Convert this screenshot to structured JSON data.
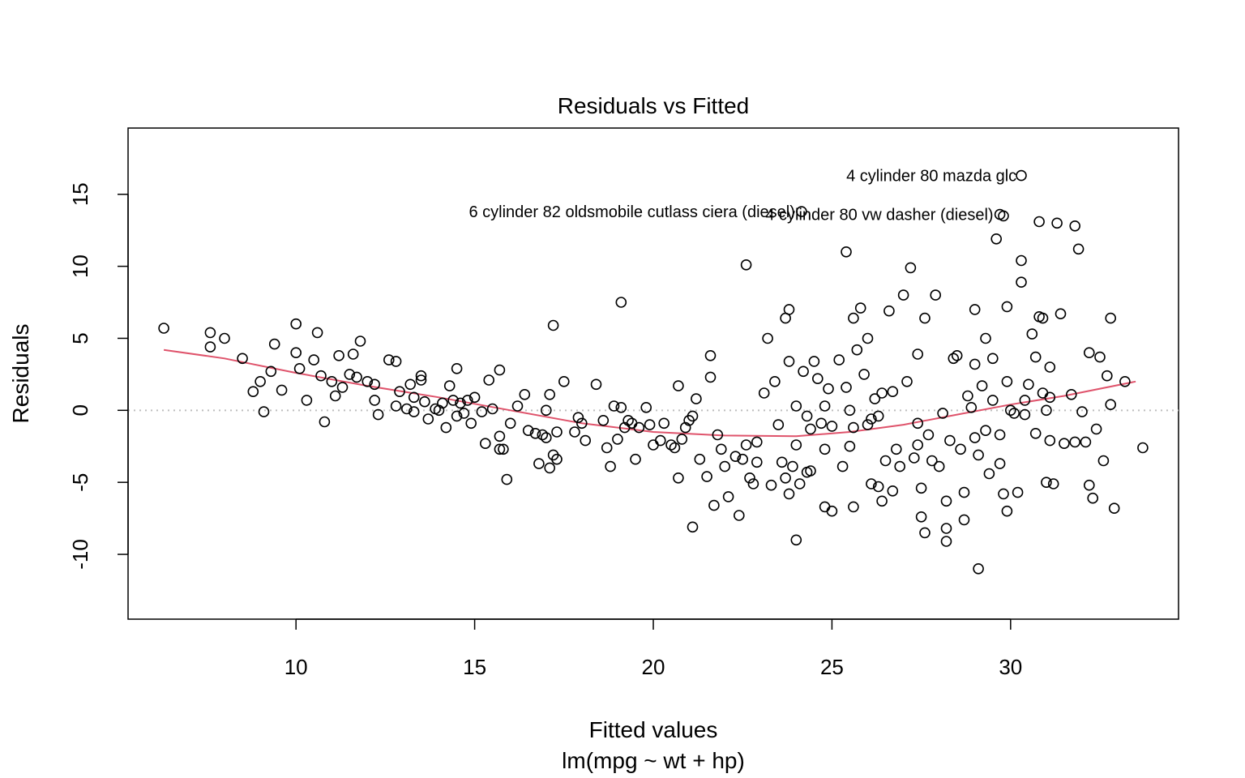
{
  "chart_data": {
    "type": "scatter",
    "title": "Residuals vs Fitted",
    "xlabel": "Fitted values",
    "subtitle": "lm(mpg ~ wt + hp)",
    "ylabel": "Residuals",
    "xlim": [
      5.3,
      34.7
    ],
    "ylim": [
      -14.5,
      19.6
    ],
    "x_ticks": [
      10,
      15,
      20,
      25,
      30
    ],
    "y_ticks": [
      -10,
      -5,
      0,
      5,
      10,
      15
    ],
    "x_tick_labels": [
      "10",
      "15",
      "20",
      "25",
      "30"
    ],
    "y_tick_labels": [
      "-10",
      "-5",
      "0",
      "5",
      "10",
      "15"
    ],
    "reference_line": {
      "y": 0,
      "style": "dotted",
      "color": "#bebebe"
    },
    "smooth_color": "#DF536B",
    "grid": false,
    "smooth": [
      [
        6.3,
        4.2
      ],
      [
        8,
        3.6
      ],
      [
        10,
        2.6
      ],
      [
        12,
        1.7
      ],
      [
        14,
        0.9
      ],
      [
        16,
        0.0
      ],
      [
        18,
        -0.9
      ],
      [
        20,
        -1.5
      ],
      [
        22,
        -1.75
      ],
      [
        24,
        -1.8
      ],
      [
        25.5,
        -1.5
      ],
      [
        27,
        -1.0
      ],
      [
        28.5,
        -0.3
      ],
      [
        30,
        0.4
      ],
      [
        31.5,
        1.0
      ],
      [
        33.5,
        2.0
      ]
    ],
    "labels": [
      {
        "text": "4 cylinder 80 mazda glc",
        "x": 30.35,
        "y": 16.3,
        "anchor": "end"
      },
      {
        "text": "6 cylinder 82 oldsmobile cutlass ciera (diesel)",
        "x": 24.15,
        "y": 13.8,
        "anchor": "end"
      },
      {
        "text": "4 cylinder 80 vw dasher (diesel)",
        "x": 29.7,
        "y": 13.6,
        "anchor": "end"
      }
    ],
    "points": [
      [
        6.3,
        5.7
      ],
      [
        7.6,
        5.4
      ],
      [
        7.6,
        4.4
      ],
      [
        8.0,
        5.0
      ],
      [
        8.5,
        3.6
      ],
      [
        8.8,
        1.3
      ],
      [
        9.0,
        2.0
      ],
      [
        9.1,
        -0.1
      ],
      [
        9.3,
        2.7
      ],
      [
        9.4,
        4.6
      ],
      [
        9.6,
        1.4
      ],
      [
        10.0,
        6.0
      ],
      [
        10.0,
        4.0
      ],
      [
        10.1,
        2.9
      ],
      [
        10.3,
        0.7
      ],
      [
        10.5,
        3.5
      ],
      [
        10.6,
        5.4
      ],
      [
        10.7,
        2.4
      ],
      [
        10.8,
        -0.8
      ],
      [
        11.0,
        2.0
      ],
      [
        11.1,
        1.0
      ],
      [
        11.2,
        3.8
      ],
      [
        11.3,
        1.6
      ],
      [
        11.5,
        2.5
      ],
      [
        11.6,
        3.9
      ],
      [
        11.7,
        2.3
      ],
      [
        11.8,
        4.8
      ],
      [
        12.0,
        2.0
      ],
      [
        12.2,
        1.8
      ],
      [
        12.2,
        0.7
      ],
      [
        12.3,
        -0.3
      ],
      [
        12.6,
        3.5
      ],
      [
        12.8,
        3.4
      ],
      [
        12.8,
        0.3
      ],
      [
        12.9,
        1.3
      ],
      [
        13.1,
        0.1
      ],
      [
        13.2,
        1.8
      ],
      [
        13.3,
        0.9
      ],
      [
        13.3,
        -0.1
      ],
      [
        13.5,
        2.4
      ],
      [
        13.5,
        2.1
      ],
      [
        13.6,
        0.6
      ],
      [
        13.7,
        -0.6
      ],
      [
        13.9,
        0.1
      ],
      [
        14.0,
        0.0
      ],
      [
        14.1,
        0.5
      ],
      [
        14.2,
        -1.2
      ],
      [
        14.3,
        1.7
      ],
      [
        14.4,
        0.7
      ],
      [
        14.5,
        2.9
      ],
      [
        14.5,
        -0.4
      ],
      [
        14.6,
        0.5
      ],
      [
        14.7,
        -0.2
      ],
      [
        14.8,
        0.7
      ],
      [
        14.9,
        -0.9
      ],
      [
        15.0,
        0.9
      ],
      [
        15.2,
        -0.1
      ],
      [
        15.3,
        -2.3
      ],
      [
        15.4,
        2.1
      ],
      [
        15.5,
        0.1
      ],
      [
        15.7,
        2.8
      ],
      [
        15.7,
        -2.7
      ],
      [
        15.7,
        -1.8
      ],
      [
        15.8,
        -2.7
      ],
      [
        15.9,
        -4.8
      ],
      [
        16.0,
        -0.9
      ],
      [
        16.2,
        0.3
      ],
      [
        16.4,
        1.1
      ],
      [
        16.5,
        -1.4
      ],
      [
        16.7,
        -1.6
      ],
      [
        16.8,
        -3.7
      ],
      [
        16.9,
        -1.7
      ],
      [
        17.0,
        0.0
      ],
      [
        17.0,
        -1.9
      ],
      [
        17.1,
        1.1
      ],
      [
        17.1,
        -4.0
      ],
      [
        17.2,
        5.9
      ],
      [
        17.2,
        -3.1
      ],
      [
        17.3,
        -1.5
      ],
      [
        17.3,
        -3.4
      ],
      [
        17.5,
        2.0
      ],
      [
        17.8,
        -1.5
      ],
      [
        17.9,
        -0.5
      ],
      [
        18.0,
        -0.9
      ],
      [
        18.1,
        -2.1
      ],
      [
        18.4,
        1.8
      ],
      [
        18.6,
        -0.7
      ],
      [
        18.7,
        -2.6
      ],
      [
        18.8,
        -3.9
      ],
      [
        18.9,
        0.3
      ],
      [
        19.0,
        -2.0
      ],
      [
        19.1,
        7.5
      ],
      [
        19.1,
        0.2
      ],
      [
        19.2,
        -1.2
      ],
      [
        19.3,
        -0.7
      ],
      [
        19.4,
        -0.9
      ],
      [
        19.5,
        -3.4
      ],
      [
        19.6,
        -1.2
      ],
      [
        19.8,
        0.2
      ],
      [
        19.9,
        -1.0
      ],
      [
        20.0,
        -2.4
      ],
      [
        20.2,
        -2.1
      ],
      [
        20.3,
        -0.9
      ],
      [
        20.5,
        -2.4
      ],
      [
        20.6,
        -2.6
      ],
      [
        20.7,
        1.7
      ],
      [
        20.7,
        -4.7
      ],
      [
        20.8,
        -2.0
      ],
      [
        20.9,
        -1.2
      ],
      [
        21.0,
        -0.7
      ],
      [
        21.1,
        -0.4
      ],
      [
        21.1,
        -8.1
      ],
      [
        21.2,
        0.8
      ],
      [
        21.3,
        -3.4
      ],
      [
        21.5,
        -4.6
      ],
      [
        21.6,
        3.8
      ],
      [
        21.6,
        2.3
      ],
      [
        21.7,
        -6.6
      ],
      [
        21.8,
        -1.7
      ],
      [
        21.9,
        -2.7
      ],
      [
        22.0,
        -3.9
      ],
      [
        22.1,
        -6.0
      ],
      [
        22.3,
        -3.2
      ],
      [
        22.4,
        -7.3
      ],
      [
        22.5,
        -3.4
      ],
      [
        22.6,
        10.1
      ],
      [
        22.6,
        -2.4
      ],
      [
        22.7,
        -4.7
      ],
      [
        22.8,
        -5.1
      ],
      [
        22.9,
        -3.6
      ],
      [
        22.9,
        -2.2
      ],
      [
        23.1,
        1.2
      ],
      [
        23.2,
        5.0
      ],
      [
        23.3,
        -5.2
      ],
      [
        23.4,
        2.0
      ],
      [
        23.5,
        -1.0
      ],
      [
        23.6,
        -3.6
      ],
      [
        23.7,
        6.4
      ],
      [
        23.7,
        -4.7
      ],
      [
        23.8,
        7.0
      ],
      [
        23.8,
        3.4
      ],
      [
        23.8,
        -5.8
      ],
      [
        23.9,
        -3.9
      ],
      [
        24.0,
        -9.0
      ],
      [
        24.0,
        0.3
      ],
      [
        24.0,
        -2.4
      ],
      [
        24.1,
        -5.1
      ],
      [
        24.2,
        2.7
      ],
      [
        24.3,
        -4.3
      ],
      [
        24.3,
        -0.4
      ],
      [
        24.4,
        -1.3
      ],
      [
        24.4,
        -4.2
      ],
      [
        24.5,
        3.4
      ],
      [
        24.6,
        2.2
      ],
      [
        24.7,
        -0.9
      ],
      [
        24.8,
        0.3
      ],
      [
        24.8,
        -2.7
      ],
      [
        24.8,
        -6.7
      ],
      [
        24.9,
        1.5
      ],
      [
        25.0,
        -7.0
      ],
      [
        25.0,
        -1.1
      ],
      [
        25.2,
        3.5
      ],
      [
        25.3,
        -3.9
      ],
      [
        25.4,
        11.0
      ],
      [
        25.4,
        1.6
      ],
      [
        25.5,
        -2.5
      ],
      [
        25.5,
        0.0
      ],
      [
        25.6,
        -1.2
      ],
      [
        25.6,
        6.4
      ],
      [
        25.6,
        -6.7
      ],
      [
        25.7,
        4.2
      ],
      [
        25.8,
        7.1
      ],
      [
        25.9,
        2.5
      ],
      [
        26.0,
        -1.0
      ],
      [
        26.0,
        5.0
      ],
      [
        26.1,
        -5.1
      ],
      [
        26.1,
        -0.6
      ],
      [
        26.2,
        0.8
      ],
      [
        26.3,
        -5.3
      ],
      [
        26.3,
        -0.4
      ],
      [
        26.4,
        1.2
      ],
      [
        26.4,
        -6.3
      ],
      [
        26.5,
        -3.5
      ],
      [
        26.6,
        6.9
      ],
      [
        26.7,
        1.3
      ],
      [
        26.7,
        -5.6
      ],
      [
        26.8,
        -2.7
      ],
      [
        26.9,
        -3.9
      ],
      [
        27.0,
        8.0
      ],
      [
        27.1,
        2.0
      ],
      [
        27.2,
        9.9
      ],
      [
        27.3,
        -3.3
      ],
      [
        27.4,
        3.9
      ],
      [
        27.4,
        -0.9
      ],
      [
        27.4,
        -2.4
      ],
      [
        27.5,
        -7.4
      ],
      [
        27.5,
        -5.4
      ],
      [
        27.6,
        -8.5
      ],
      [
        27.6,
        6.4
      ],
      [
        27.7,
        -1.7
      ],
      [
        27.8,
        -3.5
      ],
      [
        27.9,
        8.0
      ],
      [
        28.0,
        -3.9
      ],
      [
        28.1,
        -0.2
      ],
      [
        28.2,
        -9.1
      ],
      [
        28.2,
        -8.2
      ],
      [
        28.2,
        -6.3
      ],
      [
        28.3,
        -2.1
      ],
      [
        28.4,
        3.6
      ],
      [
        28.5,
        3.8
      ],
      [
        28.6,
        -2.7
      ],
      [
        28.7,
        -5.7
      ],
      [
        28.7,
        -7.6
      ],
      [
        28.8,
        1.0
      ],
      [
        28.9,
        0.2
      ],
      [
        29.0,
        7.0
      ],
      [
        29.0,
        3.2
      ],
      [
        29.0,
        -1.9
      ],
      [
        29.1,
        -11.0
      ],
      [
        29.1,
        -3.1
      ],
      [
        29.2,
        1.7
      ],
      [
        29.3,
        5.0
      ],
      [
        29.3,
        -1.4
      ],
      [
        29.4,
        -4.4
      ],
      [
        29.5,
        3.6
      ],
      [
        29.5,
        0.7
      ],
      [
        29.6,
        11.9
      ],
      [
        29.7,
        -3.7
      ],
      [
        29.7,
        -1.7
      ],
      [
        29.8,
        13.5
      ],
      [
        29.8,
        -5.8
      ],
      [
        29.9,
        7.2
      ],
      [
        29.9,
        -7.0
      ],
      [
        29.9,
        2.0
      ],
      [
        30.0,
        0.0
      ],
      [
        30.1,
        -0.2
      ],
      [
        30.2,
        -5.7
      ],
      [
        30.3,
        10.4
      ],
      [
        30.3,
        8.9
      ],
      [
        30.4,
        0.7
      ],
      [
        30.4,
        -0.3
      ],
      [
        30.5,
        1.8
      ],
      [
        30.6,
        5.3
      ],
      [
        30.7,
        3.7
      ],
      [
        30.7,
        -1.6
      ],
      [
        30.8,
        13.1
      ],
      [
        30.8,
        6.5
      ],
      [
        30.9,
        6.4
      ],
      [
        30.9,
        1.2
      ],
      [
        31.0,
        -5.0
      ],
      [
        31.0,
        0.0
      ],
      [
        31.1,
        3.0
      ],
      [
        31.1,
        0.9
      ],
      [
        31.1,
        -2.1
      ],
      [
        31.2,
        -5.1
      ],
      [
        31.3,
        13.0
      ],
      [
        31.4,
        6.7
      ],
      [
        31.5,
        -2.3
      ],
      [
        31.7,
        1.1
      ],
      [
        31.8,
        12.8
      ],
      [
        31.8,
        -2.2
      ],
      [
        31.9,
        11.2
      ],
      [
        32.0,
        -0.1
      ],
      [
        32.1,
        -2.2
      ],
      [
        32.2,
        4.0
      ],
      [
        32.2,
        -5.2
      ],
      [
        32.3,
        -6.1
      ],
      [
        32.4,
        -1.3
      ],
      [
        32.5,
        3.7
      ],
      [
        32.6,
        -3.5
      ],
      [
        32.7,
        2.4
      ],
      [
        32.8,
        6.4
      ],
      [
        32.8,
        0.4
      ],
      [
        32.9,
        -6.8
      ],
      [
        33.2,
        2.0
      ],
      [
        33.7,
        -2.6
      ],
      [
        30.3,
        16.3
      ],
      [
        24.15,
        13.8
      ],
      [
        29.7,
        13.6
      ]
    ]
  }
}
